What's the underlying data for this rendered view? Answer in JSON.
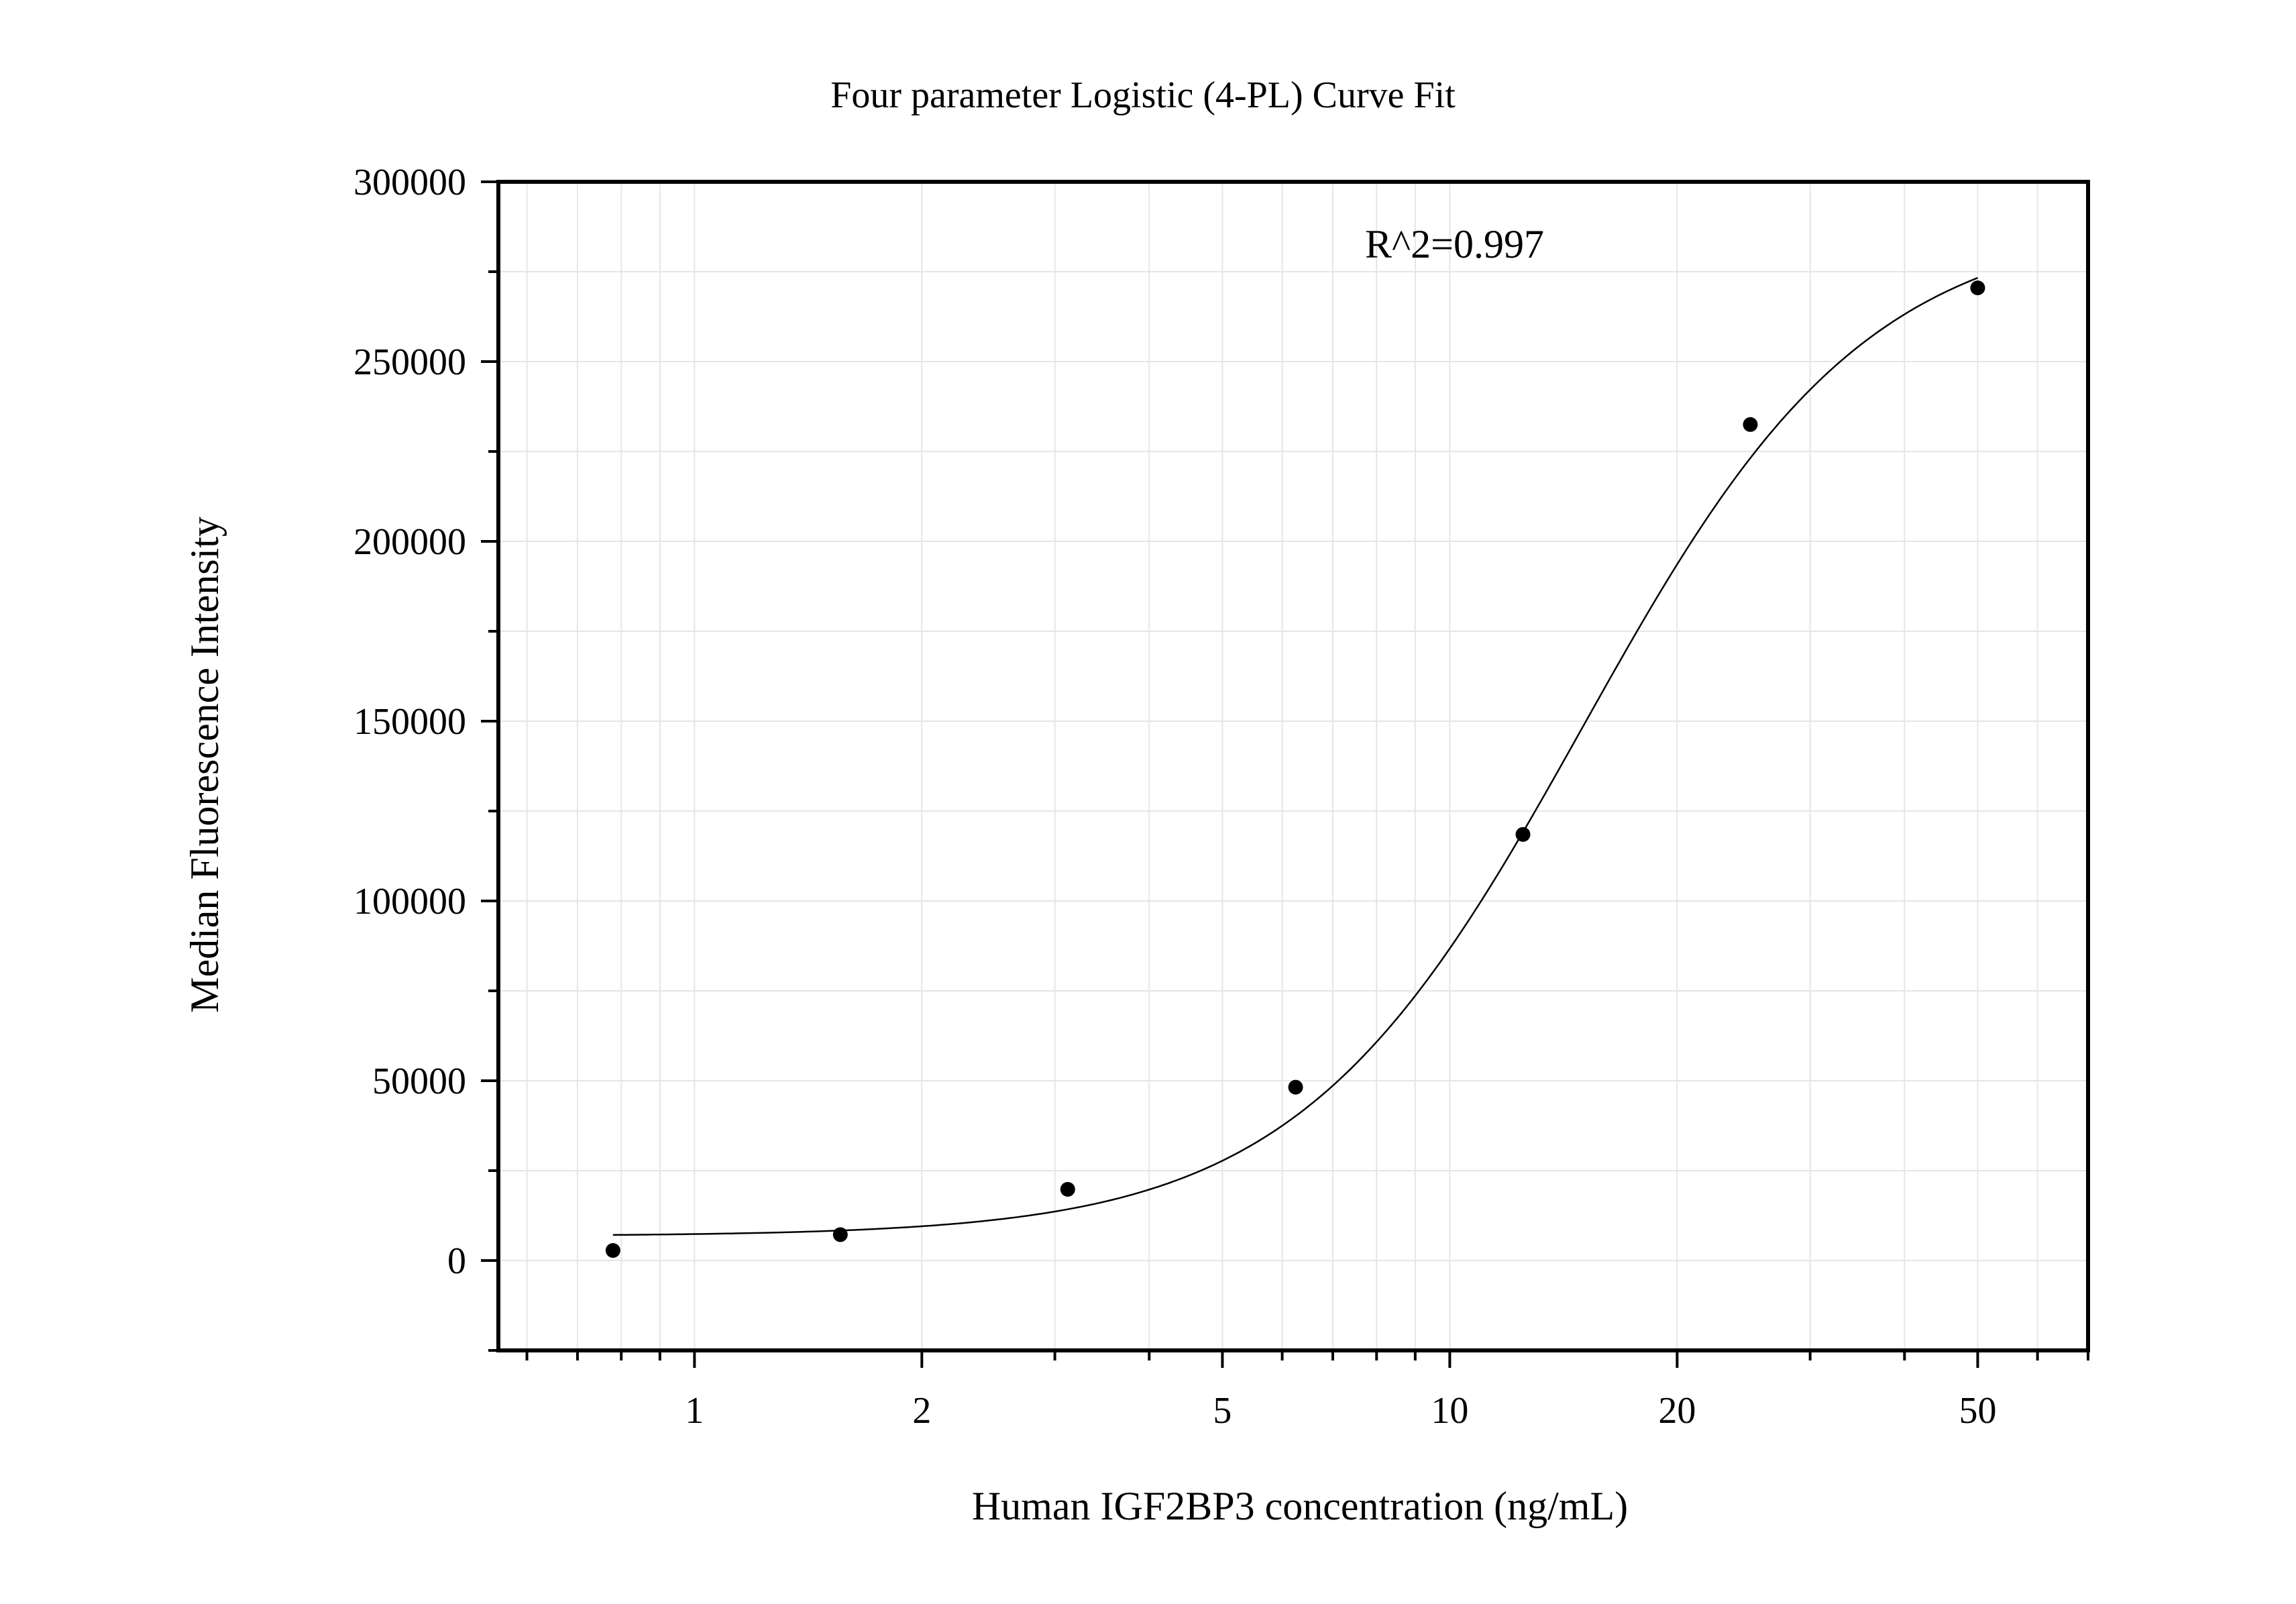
{
  "chart_data": {
    "type": "scatter",
    "title": "Four parameter Logistic (4-PL) Curve Fit",
    "xlabel": "Human IGF2BP3 concentration (ng/mL)",
    "ylabel": "Median Fluorescence Intensity",
    "x_scale": "log",
    "xlim": [
      0.55,
      70
    ],
    "ylim": [
      -25000,
      300000
    ],
    "x_ticks": [
      1,
      2,
      5,
      10,
      20,
      50
    ],
    "x_tick_labels": [
      "1",
      "2",
      "5",
      "10",
      "20",
      "50"
    ],
    "y_ticks": [
      0,
      50000,
      100000,
      150000,
      200000,
      250000,
      300000
    ],
    "y_tick_labels": [
      "0",
      "50000",
      "100000",
      "150000",
      "200000",
      "250000",
      "300000"
    ],
    "grid": true,
    "annotation": "R^2=0.997",
    "series": [
      {
        "points": [
          {
            "x": 0.78,
            "y": 2800
          },
          {
            "x": 1.56,
            "y": 7200
          },
          {
            "x": 3.12,
            "y": 19800
          },
          {
            "x": 6.25,
            "y": 48200
          },
          {
            "x": 12.5,
            "y": 118500
          },
          {
            "x": 25,
            "y": 232500
          },
          {
            "x": 50,
            "y": 270500
          }
        ]
      }
    ],
    "fit_curve": {
      "model": "4PL",
      "x_range": [
        0.78,
        50
      ],
      "bottom": 6800,
      "top": 290000,
      "ec50": 15,
      "hill": 2.3
    }
  }
}
